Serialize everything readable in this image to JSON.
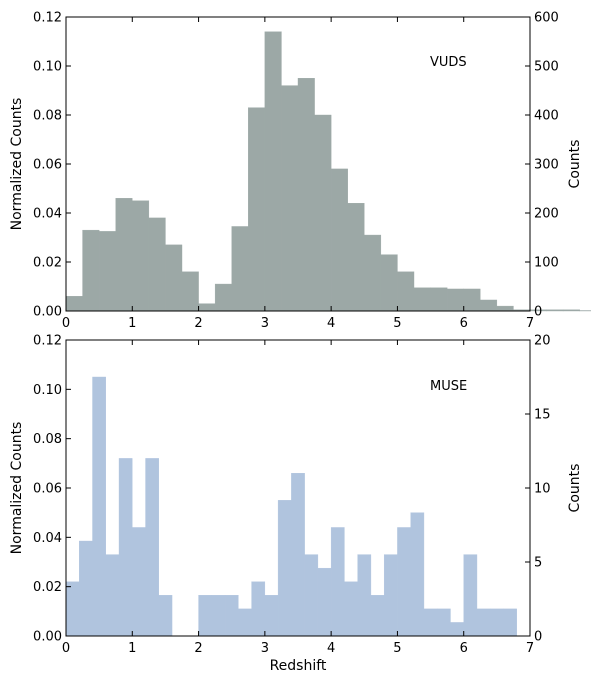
{
  "chart_data": [
    {
      "type": "bar",
      "panel": "top",
      "label": "VUDS",
      "bin_width": 0.25,
      "bin_start": 0,
      "values": [
        0.006,
        0.033,
        0.0325,
        0.046,
        0.045,
        0.038,
        0.027,
        0.016,
        0.003,
        0.011,
        0.0345,
        0.083,
        0.114,
        0.092,
        0.095,
        0.08,
        0.058,
        0.044,
        0.031,
        0.023,
        0.016,
        0.0095,
        0.0095,
        0.009,
        0.009,
        0.0045,
        0.002,
        0.0005,
        0.0005,
        0.0005,
        0.0005,
        0.0002,
        0,
        0,
        0,
        0,
        0
      ],
      "color": "#9ca8a6",
      "xlim": [
        0,
        7
      ],
      "ylim": [
        0,
        0.12
      ],
      "ylim_right": [
        0,
        600
      ],
      "xticks": [
        "0",
        "1",
        "2",
        "3",
        "4",
        "5",
        "6",
        "7"
      ],
      "yticks_left": [
        "0.00",
        "0.02",
        "0.04",
        "0.06",
        "0.08",
        "0.10",
        "0.12"
      ],
      "yticks_right": [
        "0",
        "100",
        "200",
        "300",
        "400",
        "500",
        "600"
      ],
      "ylabel_left": "Normalized Counts",
      "ylabel_right": "Counts",
      "xlabel": ""
    },
    {
      "type": "bar",
      "panel": "bottom",
      "label": "MUSE",
      "bin_width": 0.2,
      "bin_start": 0,
      "values": [
        0.022,
        0.0385,
        0.105,
        0.033,
        0.072,
        0.044,
        0.072,
        0.0165,
        0,
        0,
        0.0165,
        0.0165,
        0.0165,
        0.011,
        0.022,
        0.0165,
        0.055,
        0.066,
        0.033,
        0.0275,
        0.044,
        0.022,
        0.033,
        0.0165,
        0.033,
        0.044,
        0.05,
        0.011,
        0.011,
        0.0055,
        0.033,
        0.011,
        0.011,
        0.011,
        0,
        0
      ],
      "color": "#b0c4de",
      "xlim": [
        0,
        7
      ],
      "ylim": [
        0,
        0.12
      ],
      "ylim_right": [
        0,
        20
      ],
      "xticks": [
        "0",
        "1",
        "2",
        "3",
        "4",
        "5",
        "6",
        "7"
      ],
      "yticks_left": [
        "0.00",
        "0.02",
        "0.04",
        "0.06",
        "0.08",
        "0.10",
        "0.12"
      ],
      "yticks_right": [
        "0",
        "5",
        "10",
        "15",
        "20"
      ],
      "ylabel_left": "Normalized Counts",
      "ylabel_right": "Counts",
      "xlabel": "Redshift"
    }
  ]
}
